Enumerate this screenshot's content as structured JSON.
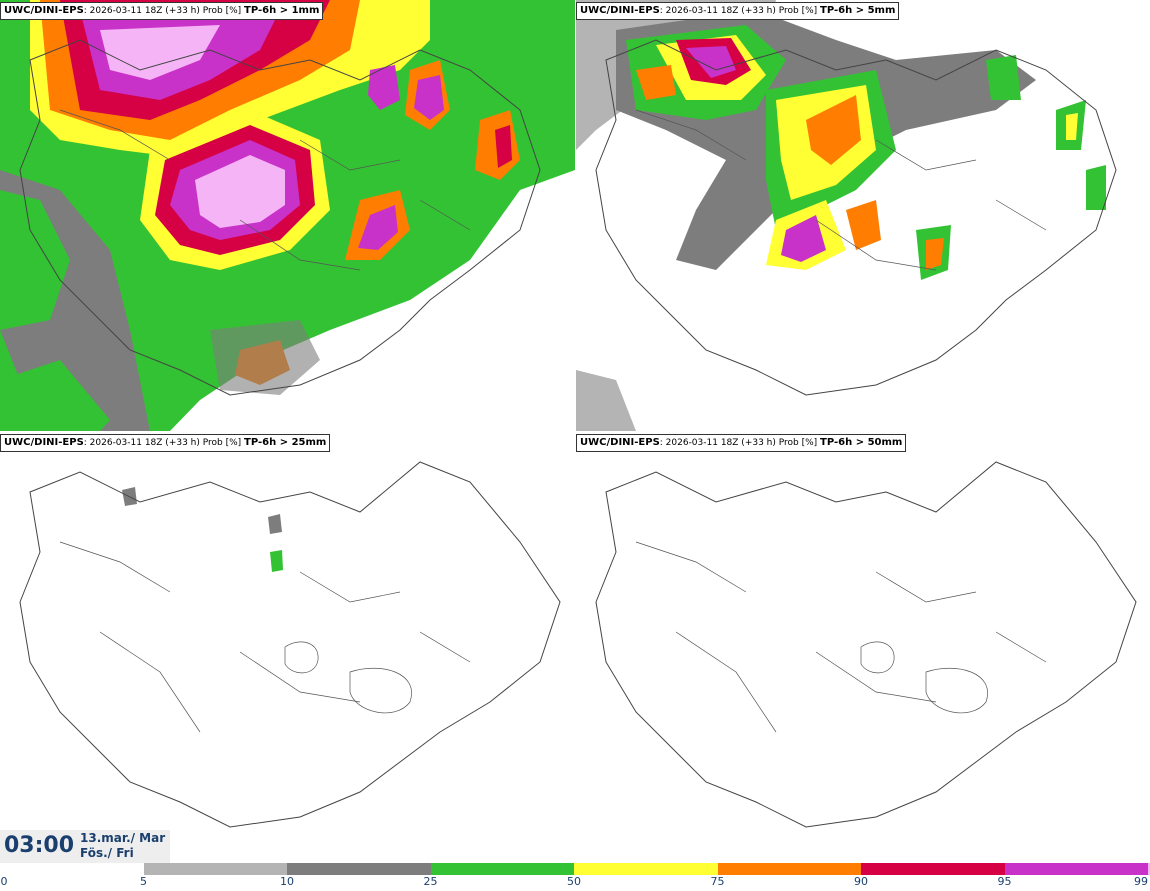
{
  "panels": [
    {
      "id": "tl",
      "source": "UWC/DINI-EPS",
      "meta": ": 2026-03-11 18Z (+33 h) Prob [%] ",
      "threshold": "TP-6h > 1mm"
    },
    {
      "id": "tr",
      "source": "UWC/DINI-EPS",
      "meta": ": 2026-03-11 18Z (+33 h) Prob [%] ",
      "threshold": "TP-6h > 5mm"
    },
    {
      "id": "bl",
      "source": "UWC/DINI-EPS",
      "meta": ": 2026-03-11 18Z (+33 h) Prob [%] ",
      "threshold": "TP-6h > 25mm"
    },
    {
      "id": "br",
      "source": "UWC/DINI-EPS",
      "meta": ": 2026-03-11 18Z (+33 h) Prob [%] ",
      "threshold": "TP-6h > 50mm"
    }
  ],
  "valid_time": {
    "time": "03:00",
    "date_line1": "13.mar./ Mar",
    "date_line2": "Fös./ Fri"
  },
  "colorbar": {
    "ticks": [
      "0",
      "5",
      "10",
      "25",
      "50",
      "75",
      "90",
      "95",
      "99"
    ],
    "colors": [
      "#ffffff",
      "#b4b4b4",
      "#7d7d7d",
      "#33c233",
      "#ffff33",
      "#ff7d00",
      "#d60045",
      "#c832c8",
      "#f5b4f5"
    ]
  }
}
